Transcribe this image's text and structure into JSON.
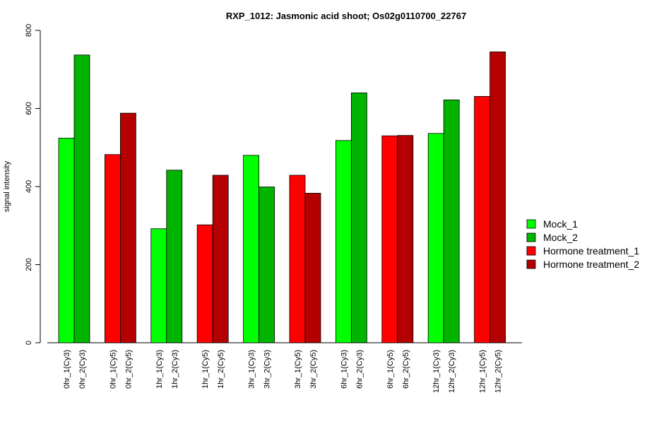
{
  "chart_data": {
    "type": "bar",
    "title": "RXP_1012: Jasmonic acid shoot; Os02g0110700_22767",
    "xlabel": "",
    "ylabel": "signal intensity",
    "ylim": [
      0,
      800
    ],
    "yticks": [
      0,
      200,
      400,
      600,
      800
    ],
    "grid": false,
    "legend_position": "right",
    "categories": [
      "0hr_1(Cy3)",
      "0hr_2(Cy3)",
      "0hr_1(Cy5)",
      "0hr_2(Cy5)",
      "1hr_1(Cy3)",
      "1hr_2(Cy3)",
      "1hr_1(Cy5)",
      "1hr_2(Cy5)",
      "3hr_1(Cy3)",
      "3hr_2(Cy3)",
      "3hr_1(Cy5)",
      "3hr_2(Cy5)",
      "6hr_1(Cy3)",
      "6hr_2(Cy3)",
      "6hr_1(Cy5)",
      "6hr_2(Cy5)",
      "12hr_1(Cy3)",
      "12hr_2(Cy3)",
      "12hr_1(Cy5)",
      "12hr_2(Cy5)"
    ],
    "values": [
      524,
      737,
      482,
      588,
      292,
      442,
      302,
      429,
      480,
      399,
      429,
      383,
      518,
      640,
      530,
      531,
      536,
      622,
      631,
      745
    ],
    "bar_series": [
      0,
      1,
      2,
      3,
      0,
      1,
      2,
      3,
      0,
      1,
      2,
      3,
      0,
      1,
      2,
      3,
      0,
      1,
      2,
      3
    ],
    "series": [
      {
        "name": "Mock_1",
        "color": "#00ff00"
      },
      {
        "name": "Mock_2",
        "color": "#00b400"
      },
      {
        "name": "Hormone treatment_1",
        "color": "#ff0000"
      },
      {
        "name": "Hormone treatment_2",
        "color": "#b40000"
      }
    ]
  }
}
